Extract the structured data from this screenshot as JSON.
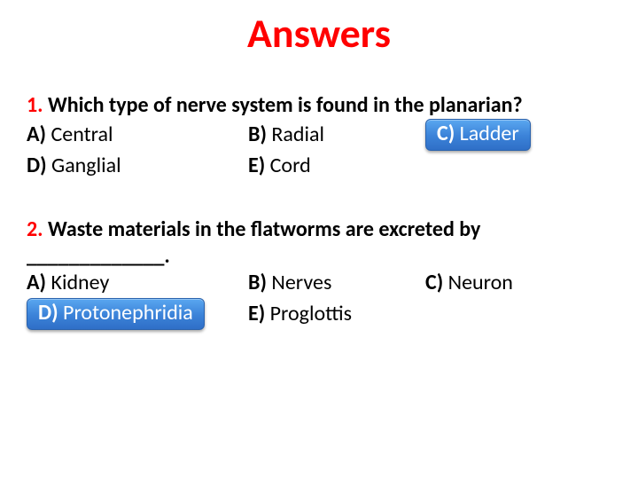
{
  "title": "Answers",
  "colors": {
    "title": "#ff0000",
    "number": "#ff0000",
    "text": "#000000",
    "pill_bg_top": "#5aa7f0",
    "pill_bg_mid": "#3b82d8",
    "pill_bg_bot": "#2f6fc7",
    "pill_text": "#ffffff",
    "background": "#ffffff"
  },
  "questions": [
    {
      "number": "1.",
      "text": "Which type of nerve system is found in the planarian?",
      "options": {
        "A": {
          "letter": "A)",
          "text": "Central"
        },
        "B": {
          "letter": "B)",
          "text": "Radial"
        },
        "C": {
          "letter": "C)",
          "text": "Ladder",
          "correct": true
        },
        "D": {
          "letter": "D)",
          "text": "Ganglial"
        },
        "E": {
          "letter": "E)",
          "text": "Cord"
        }
      }
    },
    {
      "number": "2.",
      "text": "Waste materials in the flatworms are excreted by _____________.",
      "options": {
        "A": {
          "letter": "A)",
          "text": "Kidney"
        },
        "B": {
          "letter": "B)",
          "text": "Nerves"
        },
        "C": {
          "letter": "C)",
          "text": "Neuron"
        },
        "D": {
          "letter": "D)",
          "text": "Protonephridia",
          "correct": true
        },
        "E": {
          "letter": "E)",
          "text": "Proglottis"
        }
      }
    }
  ]
}
